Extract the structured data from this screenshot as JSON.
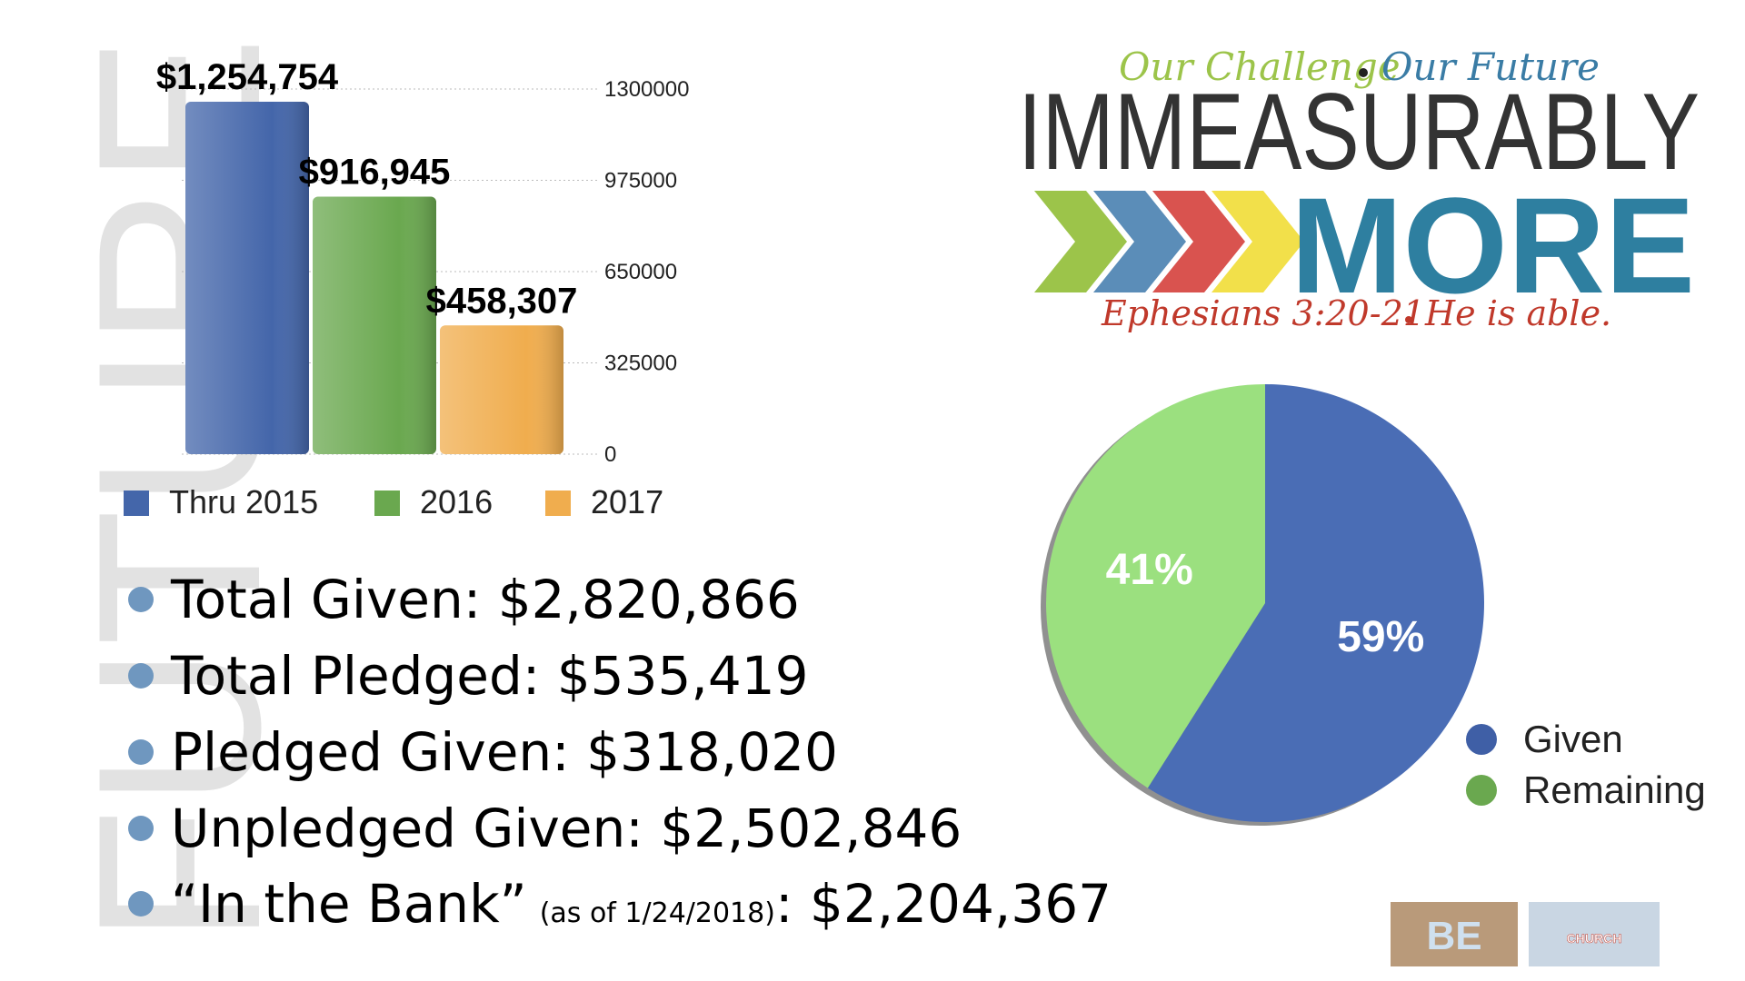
{
  "chart_data": [
    {
      "type": "bar",
      "categories": [
        null
      ],
      "series": [
        {
          "name": "Thru 2015",
          "color": "#4466aa",
          "values": [
            1254754
          ],
          "value_labels": [
            "$1,254,754"
          ]
        },
        {
          "name": "2016",
          "color": "#6aa84f",
          "values": [
            916945
          ],
          "value_labels": [
            "$916,945"
          ]
        },
        {
          "name": "2017",
          "color": "#f0ad4e",
          "values": [
            458307
          ],
          "value_labels": [
            "$458,307"
          ]
        }
      ],
      "ylim": [
        0,
        1300000
      ],
      "yticks": [
        0,
        325000,
        650000,
        975000,
        1300000
      ],
      "grid": true,
      "legend": "bottom"
    },
    {
      "type": "pie",
      "categories": [
        "Given",
        "Remaining"
      ],
      "values": [
        59,
        41
      ],
      "value_labels": [
        "59%",
        "41%"
      ],
      "colors": [
        "#4a6db5",
        "#9be07f"
      ],
      "legend_colors": [
        "#3f5fa6",
        "#6aa84f"
      ],
      "legend": "bottom-right"
    }
  ],
  "background_word": "FUTURE",
  "logo": {
    "line1a": "Our Challenge",
    "line1b": "Our Future",
    "title": "IMMEASURABLY",
    "word": "MORE",
    "verse": "Ephesians 3:20-21",
    "tagline": "He is able."
  },
  "bullets": [
    [
      "Total Given: $2,820,866"
    ],
    [
      "Total Pledged: $535,419"
    ],
    [
      "Pledged Given: $318,020"
    ],
    [
      "Unpledged Given: $2,502,846"
    ],
    [
      "“In the Bank”",
      "(as of 1/24/2018)",
      ": $2,204,367"
    ]
  ],
  "thumbnails": [
    "BE",
    "CHURCH"
  ]
}
